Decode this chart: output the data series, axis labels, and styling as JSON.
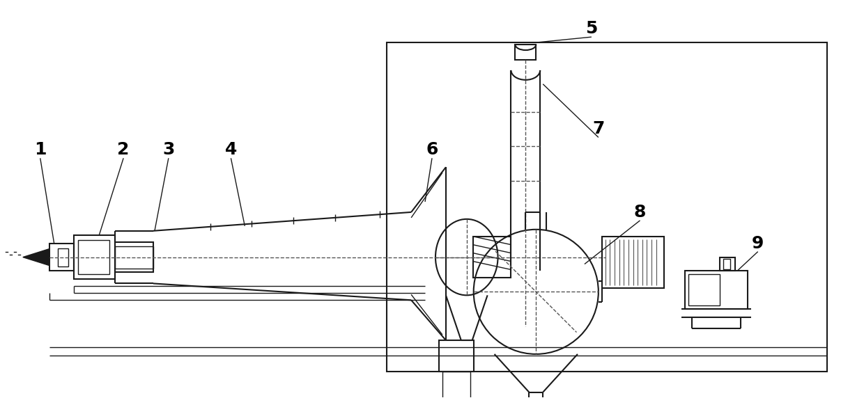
{
  "bg_color": "#ffffff",
  "line_color": "#1a1a1a",
  "dashed_color": "#555555",
  "label_color": "#000000",
  "figsize": [
    12.4,
    5.72
  ],
  "dpi": 100
}
